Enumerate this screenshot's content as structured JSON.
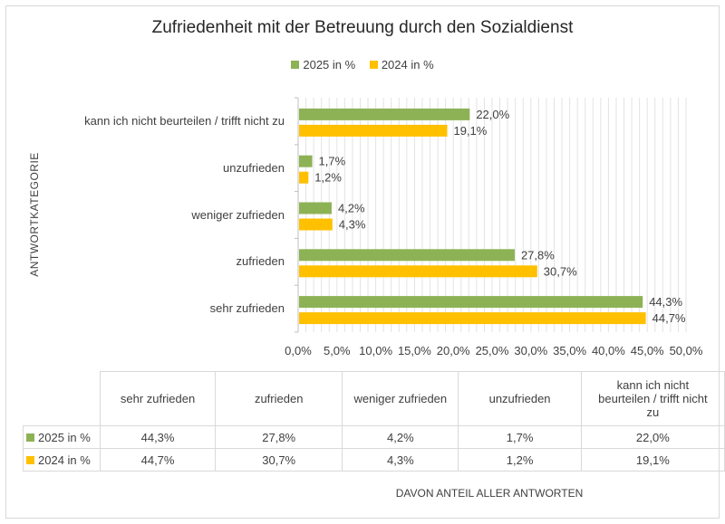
{
  "chart_data": {
    "type": "bar",
    "orientation": "horizontal",
    "title": "Zufriedenheit mit der Betreuung durch den Sozialdienst",
    "ylabel": "ANTWORTKATEGORIE",
    "xlabel": "DAVON ANTEIL ALLER ANTWORTEN",
    "categories": [
      "sehr zufrieden",
      "zufrieden",
      "weniger zufrieden",
      "unzufrieden",
      "kann ich nicht beurteilen / trifft nicht zu"
    ],
    "series": [
      {
        "name": "2025 in %",
        "color": "#8db255",
        "values": [
          44.3,
          27.8,
          4.2,
          1.7,
          22.0
        ],
        "labels": [
          "44,3%",
          "27,8%",
          "4,2%",
          "1,7%",
          "22,0%"
        ]
      },
      {
        "name": "2024 in %",
        "color": "#ffc000",
        "values": [
          44.7,
          30.7,
          4.3,
          1.2,
          19.1
        ],
        "labels": [
          "44,7%",
          "30,7%",
          "4,3%",
          "1,2%",
          "19,1%"
        ]
      }
    ],
    "xlim": [
      0,
      50
    ],
    "xticks": [
      "0,0%",
      "5,0%",
      "10,0%",
      "15,0%",
      "20,0%",
      "25,0%",
      "30,0%",
      "35,0%",
      "40,0%",
      "45,0%",
      "50,0%"
    ],
    "grid": true,
    "legend": "top",
    "data_table": true
  }
}
